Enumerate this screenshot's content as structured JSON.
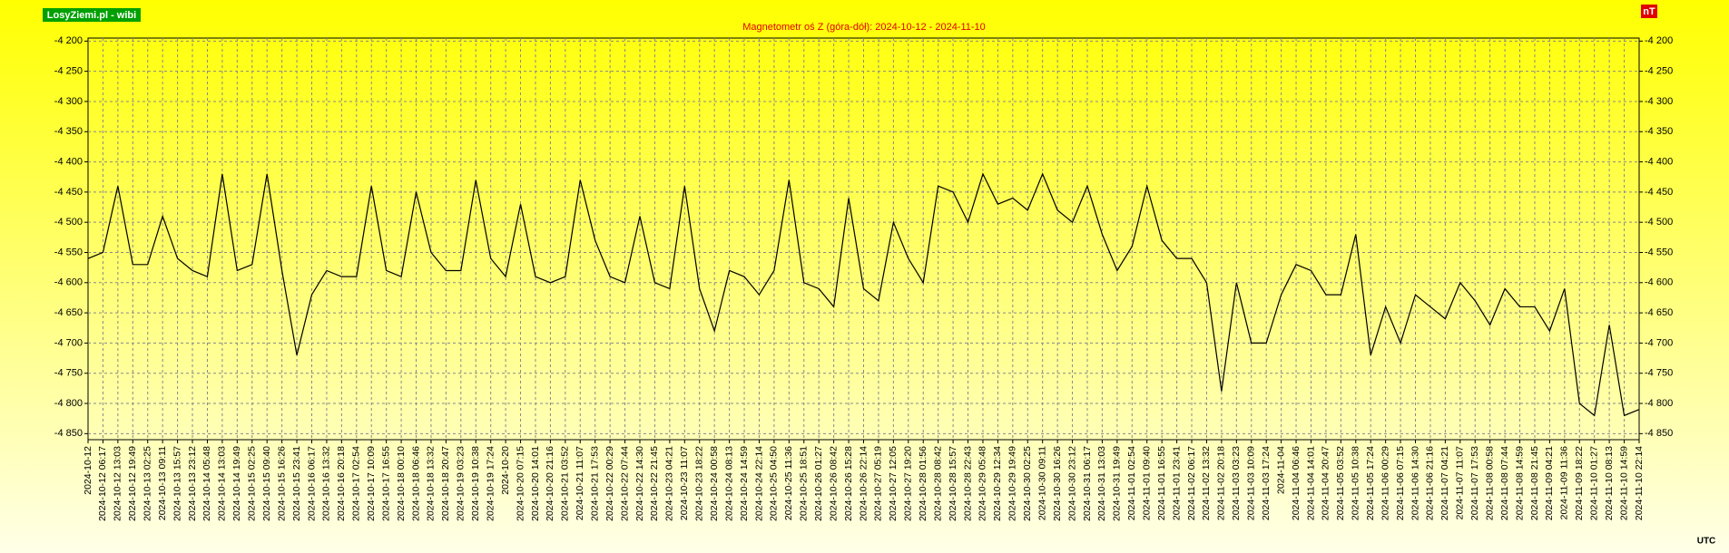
{
  "chart_data": {
    "type": "line",
    "brand": "LosyZiemi.pl - wibi",
    "title": "Magnetometr oś Z (góra-dół): 2024-10-12 - 2024-11-10",
    "unit": "nT",
    "x_note": "UTC",
    "color": "#000000",
    "grid": true,
    "categories": [
      "2024-10-12",
      "2024-10-12 06:17",
      "2024-10-12 13:03",
      "2024-10-12 19:49",
      "2024-10-13 02:25",
      "2024-10-13 09:11",
      "2024-10-13 15:57",
      "2024-10-13 23:12",
      "2024-10-14 05:48",
      "2024-10-14 13:03",
      "2024-10-14 19:49",
      "2024-10-15 02:25",
      "2024-10-15 09:40",
      "2024-10-15 16:26",
      "2024-10-15 23:41",
      "2024-10-16 06:17",
      "2024-10-16 13:32",
      "2024-10-16 20:18",
      "2024-10-17 02:54",
      "2024-10-17 10:09",
      "2024-10-17 16:55",
      "2024-10-18 00:10",
      "2024-10-18 06:46",
      "2024-10-18 13:32",
      "2024-10-18 20:47",
      "2024-10-19 03:23",
      "2024-10-19 10:38",
      "2024-10-19 17:24",
      "2024-10-20",
      "2024-10-20 07:15",
      "2024-10-20 14:01",
      "2024-10-20 21:16",
      "2024-10-21 03:52",
      "2024-10-21 11:07",
      "2024-10-21 17:53",
      "2024-10-22 00:29",
      "2024-10-22 07:44",
      "2024-10-22 14:30",
      "2024-10-22 21:45",
      "2024-10-23 04:21",
      "2024-10-23 11:07",
      "2024-10-23 18:22",
      "2024-10-24 00:58",
      "2024-10-24 08:13",
      "2024-10-24 14:59",
      "2024-10-24 22:14",
      "2024-10-25 04:50",
      "2024-10-25 11:36",
      "2024-10-25 18:51",
      "2024-10-26 01:27",
      "2024-10-26 08:42",
      "2024-10-26 15:28",
      "2024-10-26 22:14",
      "2024-10-27 05:19",
      "2024-10-27 12:05",
      "2024-10-27 19:20",
      "2024-10-28 01:56",
      "2024-10-28 08:42",
      "2024-10-28 15:57",
      "2024-10-28 22:43",
      "2024-10-29 05:48",
      "2024-10-29 12:34",
      "2024-10-29 19:49",
      "2024-10-30 02:25",
      "2024-10-30 09:11",
      "2024-10-30 16:26",
      "2024-10-30 23:12",
      "2024-10-31 06:17",
      "2024-10-31 13:03",
      "2024-10-31 19:49",
      "2024-11-01 02:54",
      "2024-11-01 09:40",
      "2024-11-01 16:55",
      "2024-11-01 23:41",
      "2024-11-02 06:17",
      "2024-11-02 13:32",
      "2024-11-02 20:18",
      "2024-11-03 03:23",
      "2024-11-03 10:09",
      "2024-11-03 17:24",
      "2024-11-04",
      "2024-11-04 06:46",
      "2024-11-04 14:01",
      "2024-11-04 20:47",
      "2024-11-05 03:52",
      "2024-11-05 10:38",
      "2024-11-05 17:24",
      "2024-11-06 00:29",
      "2024-11-06 07:15",
      "2024-11-06 14:30",
      "2024-11-06 21:16",
      "2024-11-07 04:21",
      "2024-11-07 11:07",
      "2024-11-07 17:53",
      "2024-11-08 00:58",
      "2024-11-08 07:44",
      "2024-11-08 14:59",
      "2024-11-08 21:45",
      "2024-11-09 04:21",
      "2024-11-09 11:36",
      "2024-11-09 18:22",
      "2024-11-10 01:27",
      "2024-11-10 08:13",
      "2024-11-10 14:59",
      "2024-11-10 22:14"
    ],
    "values": [
      -4560,
      -4550,
      -4440,
      -4570,
      -4570,
      -4490,
      -4560,
      -4580,
      -4590,
      -4420,
      -4580,
      -4570,
      -4420,
      -4580,
      -4720,
      -4620,
      -4580,
      -4590,
      -4590,
      -4440,
      -4580,
      -4590,
      -4450,
      -4550,
      -4580,
      -4580,
      -4430,
      -4560,
      -4590,
      -4470,
      -4590,
      -4600,
      -4590,
      -4430,
      -4530,
      -4590,
      -4600,
      -4490,
      -4600,
      -4610,
      -4440,
      -4610,
      -4680,
      -4580,
      -4590,
      -4620,
      -4580,
      -4430,
      -4600,
      -4610,
      -4640,
      -4460,
      -4610,
      -4630,
      -4500,
      -4560,
      -4600,
      -4440,
      -4450,
      -4500,
      -4420,
      -4470,
      -4460,
      -4480,
      -4420,
      -4480,
      -4500,
      -4440,
      -4520,
      -4580,
      -4540,
      -4440,
      -4530,
      -4560,
      -4560,
      -4600,
      -4780,
      -4600,
      -4700,
      -4700,
      -4620,
      -4570,
      -4580,
      -4620,
      -4620,
      -4520,
      -4720,
      -4640,
      -4700,
      -4620,
      -4640,
      -4660,
      -4600,
      -4630,
      -4670,
      -4610,
      -4640,
      -4640,
      -4680,
      -4610,
      -4800,
      -4820,
      -4670,
      -4820,
      -4810
    ],
    "ylim": [
      -4860,
      -4195
    ],
    "yticks": [
      {
        "value": -4200,
        "label": "-4 200"
      },
      {
        "value": -4250,
        "label": "-4 250"
      },
      {
        "value": -4300,
        "label": "-4 300"
      },
      {
        "value": -4350,
        "label": "-4 350"
      },
      {
        "value": -4400,
        "label": "-4 400"
      },
      {
        "value": -4450,
        "label": "-4 450"
      },
      {
        "value": -4500,
        "label": "-4 500"
      },
      {
        "value": -4550,
        "label": "-4 550"
      },
      {
        "value": -4600,
        "label": "-4 600"
      },
      {
        "value": -4650,
        "label": "-4 650"
      },
      {
        "value": -4700,
        "label": "-4 700"
      },
      {
        "value": -4750,
        "label": "-4 750"
      },
      {
        "value": -4800,
        "label": "-4 800"
      },
      {
        "value": -4850,
        "label": "-4 850"
      }
    ]
  }
}
